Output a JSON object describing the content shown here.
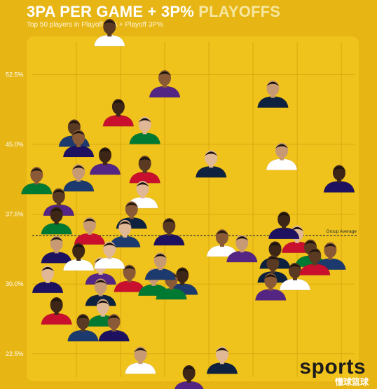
{
  "header": {
    "title_main": "3PA PER GAME + 3P%",
    "title_accent": "PLAYOFFS",
    "subtitle": "Top 50 players in Playoff 3PA + Playoff 3P%"
  },
  "colors": {
    "background": "#e7b514",
    "panel": "#f0c21c",
    "grid": "#d9a90f",
    "avg_line": "#1e2a3a",
    "skin": [
      "#5a3a22",
      "#8a5a36",
      "#c79a74",
      "#3e2616",
      "#e0b896"
    ],
    "jersey": [
      "#ffffff",
      "#1d3a6e",
      "#c8102e",
      "#552583",
      "#1d1160",
      "#007a33",
      "#0e2240"
    ]
  },
  "chart_data": {
    "type": "scatter",
    "title": "3PA PER GAME + 3P% PLAYOFFS",
    "subtitle": "Top 50 players in Playoff 3PA + Playoff 3P%",
    "xlabel": "",
    "ylabel": "",
    "xlim": [
      0,
      7.3
    ],
    "ylim": [
      20.0,
      56.0
    ],
    "y_ticks": [
      "52.5%",
      "45.0%",
      "37.5%",
      "30.0%",
      "22.5%"
    ],
    "y_tick_values": [
      52.5,
      45.0,
      37.5,
      30.0,
      22.5
    ],
    "grid": true,
    "average_label": "Group Average",
    "average_value": 35.2,
    "points": [
      {
        "x": 1.75,
        "y": 56.6
      },
      {
        "x": 3.0,
        "y": 51.1
      },
      {
        "x": 5.45,
        "y": 50.0
      },
      {
        "x": 1.95,
        "y": 48.0
      },
      {
        "x": 2.55,
        "y": 46.1
      },
      {
        "x": 0.95,
        "y": 45.8
      },
      {
        "x": 1.05,
        "y": 44.7
      },
      {
        "x": 5.65,
        "y": 43.3
      },
      {
        "x": 1.65,
        "y": 42.8
      },
      {
        "x": 4.05,
        "y": 42.5
      },
      {
        "x": 2.55,
        "y": 41.9
      },
      {
        "x": 0.1,
        "y": 40.7
      },
      {
        "x": 1.05,
        "y": 41.0
      },
      {
        "x": 6.95,
        "y": 40.9
      },
      {
        "x": 2.5,
        "y": 39.2
      },
      {
        "x": 0.6,
        "y": 38.4
      },
      {
        "x": 2.25,
        "y": 37.0
      },
      {
        "x": 1.3,
        "y": 35.3
      },
      {
        "x": 0.55,
        "y": 36.4
      },
      {
        "x": 2.1,
        "y": 35.0
      },
      {
        "x": 3.1,
        "y": 35.2
      },
      {
        "x": 4.3,
        "y": 34.0
      },
      {
        "x": 4.75,
        "y": 33.4
      },
      {
        "x": 5.5,
        "y": 32.7
      },
      {
        "x": 6.0,
        "y": 34.4
      },
      {
        "x": 6.3,
        "y": 32.9
      },
      {
        "x": 6.75,
        "y": 32.6
      },
      {
        "x": 0.55,
        "y": 33.3
      },
      {
        "x": 1.05,
        "y": 32.5
      },
      {
        "x": 1.55,
        "y": 31.0
      },
      {
        "x": 5.45,
        "y": 31.2
      },
      {
        "x": 2.2,
        "y": 30.2
      },
      {
        "x": 2.75,
        "y": 29.8
      },
      {
        "x": 3.4,
        "y": 29.9
      },
      {
        "x": 0.35,
        "y": 30.1
      },
      {
        "x": 5.95,
        "y": 30.4
      },
      {
        "x": 5.4,
        "y": 29.3
      },
      {
        "x": 1.55,
        "y": 28.7
      },
      {
        "x": 0.55,
        "y": 26.7
      },
      {
        "x": 1.6,
        "y": 26.5
      },
      {
        "x": 1.15,
        "y": 24.9
      },
      {
        "x": 1.85,
        "y": 24.9
      },
      {
        "x": 2.45,
        "y": 21.4
      },
      {
        "x": 3.55,
        "y": 19.4
      },
      {
        "x": 4.3,
        "y": 21.4
      },
      {
        "x": 6.4,
        "y": 32.0
      },
      {
        "x": 3.15,
        "y": 29.4
      },
      {
        "x": 2.9,
        "y": 31.5
      },
      {
        "x": 5.7,
        "y": 35.9
      },
      {
        "x": 1.75,
        "y": 32.7
      }
    ]
  }
}
